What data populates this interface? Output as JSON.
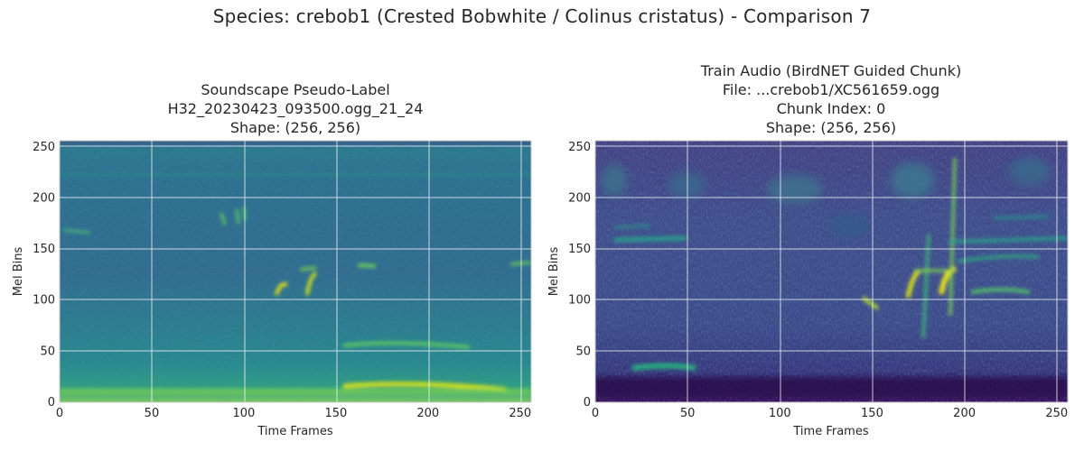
{
  "figure": {
    "suptitle": "Species: crebob1 (Crested Bobwhite / Colinus cristatus) - Comparison 7"
  },
  "chart_data": [
    {
      "type": "heatmap",
      "colormap": "viridis",
      "title": [
        "Soundscape Pseudo-Label",
        "H32_20230423_093500.ogg_21_24",
        "Shape: (256, 256)"
      ],
      "xlabel": "Time Frames",
      "ylabel": "Mel Bins",
      "xlim": [
        0,
        256
      ],
      "ylim": [
        0,
        256
      ],
      "xticks": [
        0,
        50,
        100,
        150,
        200,
        250
      ],
      "yticks": [
        0,
        50,
        100,
        150,
        200,
        250
      ],
      "grid": true,
      "shape": [
        256,
        256
      ],
      "background_level": 0.38
    },
    {
      "type": "heatmap",
      "colormap": "viridis",
      "title": [
        "Train Audio (BirdNET Guided Chunk)",
        "File: ...crebob1/XC561659.ogg",
        "Chunk Index: 0",
        "Shape: (256, 256)"
      ],
      "xlabel": "Time Frames",
      "ylabel": "Mel Bins",
      "xlim": [
        0,
        256
      ],
      "ylim": [
        0,
        256
      ],
      "xticks": [
        0,
        50,
        100,
        150,
        200,
        250
      ],
      "yticks": [
        0,
        50,
        100,
        150,
        200,
        250
      ],
      "grid": true,
      "shape": [
        256,
        256
      ],
      "background_level": 0.18
    }
  ]
}
